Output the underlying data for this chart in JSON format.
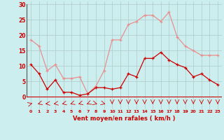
{
  "x": [
    0,
    1,
    2,
    3,
    4,
    5,
    6,
    7,
    8,
    9,
    10,
    11,
    12,
    13,
    14,
    15,
    16,
    17,
    18,
    19,
    20,
    21,
    22,
    23
  ],
  "wind_avg": [
    10.5,
    7.5,
    2.5,
    5.5,
    1.5,
    1.5,
    0.5,
    1.0,
    3.0,
    3.0,
    2.5,
    3.0,
    7.5,
    6.5,
    12.5,
    12.5,
    14.5,
    12.0,
    10.5,
    9.5,
    6.5,
    7.5,
    5.5,
    4.0
  ],
  "wind_gust": [
    18.5,
    16.5,
    8.5,
    10.5,
    6.0,
    6.0,
    6.5,
    1.0,
    3.5,
    8.5,
    18.5,
    18.5,
    23.5,
    24.5,
    26.5,
    26.5,
    24.5,
    27.5,
    19.5,
    16.5,
    15.0,
    13.5,
    13.5,
    13.5
  ],
  "color_avg": "#cc0000",
  "color_gust": "#e89090",
  "background": "#cceeee",
  "grid_color": "#b0c8c8",
  "xlabel": "Vent moyen/en rafales ( km/h )",
  "ylabel_ticks": [
    0,
    5,
    10,
    15,
    20,
    25,
    30
  ],
  "ylim": [
    -4,
    31
  ],
  "xlim": [
    -0.5,
    23.5
  ]
}
